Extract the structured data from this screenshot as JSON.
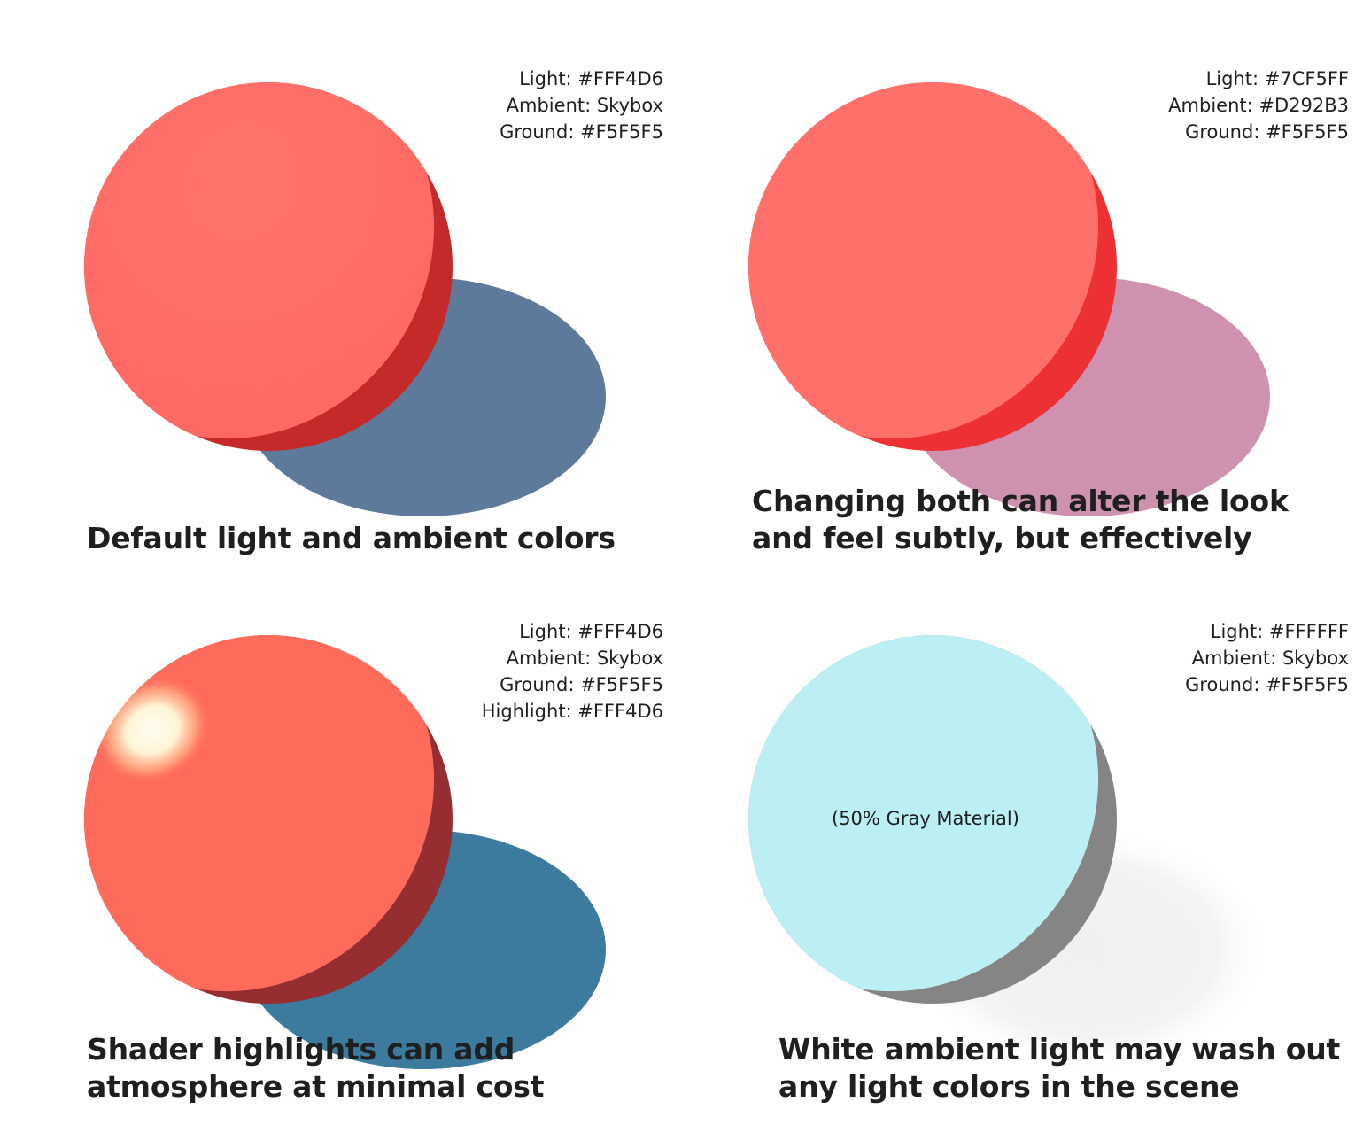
{
  "panels": [
    {
      "caption_lines": [
        "Default light and ambient colors"
      ],
      "info": [
        "Light: #FFF4D6",
        "Ambient: Skybox",
        "Ground: #F5F5F5"
      ],
      "colors": {
        "sphere_lit": "#FF6B64",
        "sphere_shade": "#C42A29",
        "shadow": "#5E7A9A"
      }
    },
    {
      "caption_lines": [
        "Changing both can alter the look",
        "and feel subtly, but effectively"
      ],
      "info": [
        "Light: #7CF5FF",
        "Ambient: #D292B3",
        "Ground: #F5F5F5"
      ],
      "colors": {
        "sphere_lit": "#FF706A",
        "sphere_shade": "#EC3033",
        "shadow": "#CE92B0"
      }
    },
    {
      "caption_lines": [
        "Shader highlights can add",
        "atmosphere at minimal cost"
      ],
      "info": [
        "Light: #FFF4D6",
        "Ambient: Skybox",
        "Ground: #F5F5F5",
        "Highlight: #FFF4D6"
      ],
      "colors": {
        "sphere_lit": "#FF6B5A",
        "sphere_shade": "#962D30",
        "shadow": "#3C7A9E",
        "highlight": "#FFF4D6"
      }
    },
    {
      "caption_lines": [
        "White ambient light may wash out",
        "any light colors in the scene"
      ],
      "info": [
        "Light: #FFFFFF",
        "Ambient: Skybox",
        "Ground: #F5F5F5"
      ],
      "material_label": "(50% Gray Material)",
      "colors": {
        "sphere_lit": "#BCEFF3",
        "sphere_shade": "#858585",
        "shadow": "#F2F2F2"
      }
    }
  ]
}
